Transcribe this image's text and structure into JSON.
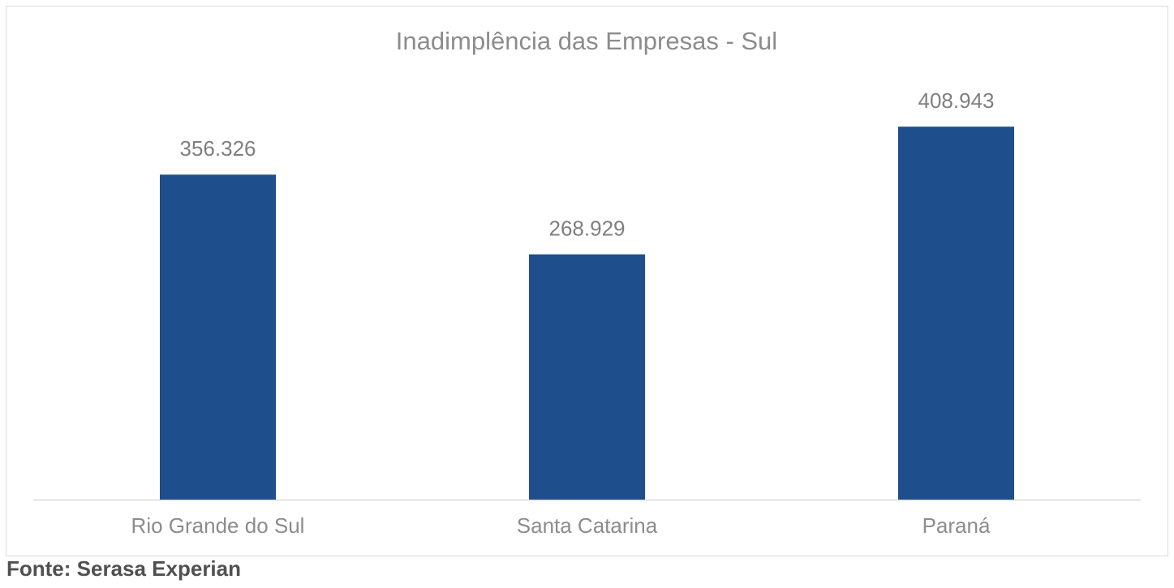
{
  "chart_data": {
    "type": "bar",
    "title": "Inadimplência das Empresas - Sul",
    "categories": [
      "Rio Grande do Sul",
      "Santa Catarina",
      "Paraná"
    ],
    "values": [
      356326,
      268929,
      408943
    ],
    "value_labels": [
      "356.326",
      "268.929",
      "408.943"
    ],
    "color": "#1f4e8c",
    "ylim": [
      0,
      450000
    ]
  },
  "source": "Fonte: Serasa Experian"
}
